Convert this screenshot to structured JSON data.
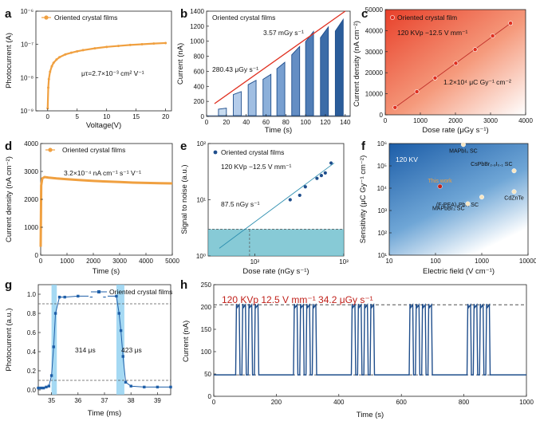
{
  "colors": {
    "orange": "#F0A040",
    "blue": "#1F4E8C",
    "red": "#E03020",
    "teal": "#5FB8C8",
    "lightblue": "#8ED0F0",
    "darkred": "#C0201A"
  },
  "chart_data": [
    {
      "panel": "a",
      "type": "line",
      "legend": "Oriented crystal films",
      "annotation": "μτ=2.7×10⁻³ cm² V⁻¹",
      "xlabel": "Voltage(V)",
      "ylabel": "Photocurrent (A)",
      "xlim": [
        -2,
        21
      ],
      "ylim_log": [
        1e-09,
        1e-06
      ],
      "yscale": "log",
      "xticks": [
        "0",
        "5",
        "10",
        "15",
        "20"
      ],
      "yticks": [
        "10⁻⁹",
        "10⁻⁸",
        "10⁻⁷",
        "10⁻⁶"
      ],
      "x": [
        0.0,
        0.1,
        0.2,
        0.4,
        0.7,
        1.0,
        1.5,
        2,
        3,
        4,
        5,
        6,
        8,
        10,
        12,
        14,
        16,
        18,
        20
      ],
      "y": [
        1.2e-09,
        5e-09,
        9e-09,
        1.5e-08,
        2.2e-08,
        2.8e-08,
        3.5e-08,
        4.1e-08,
        5e-08,
        5.6e-08,
        6.2e-08,
        6.7e-08,
        7.6e-08,
        8.4e-08,
        9e-08,
        9.6e-08,
        1.01e-07,
        1.06e-07,
        1.1e-07
      ]
    },
    {
      "panel": "b",
      "type": "line",
      "legend": "Oriented crystal films",
      "annotations": [
        "3.57 mGy s⁻¹",
        "280.43 μGy s⁻¹"
      ],
      "xlabel": "Time (s)",
      "ylabel": "Current (nA)",
      "xlim": [
        0,
        145
      ],
      "ylim": [
        0,
        1400
      ],
      "xticks": [
        "0",
        "20",
        "40",
        "60",
        "80",
        "100",
        "120",
        "140"
      ],
      "yticks": [
        "0",
        "200",
        "400",
        "600",
        "800",
        "1000",
        "1200",
        "1400"
      ],
      "pulses": [
        {
          "on": 12,
          "off": 20,
          "peak": 110
        },
        {
          "on": 27,
          "off": 35,
          "peak": 330
        },
        {
          "on": 42,
          "off": 50,
          "peak": 480
        },
        {
          "on": 57,
          "off": 65,
          "peak": 560
        },
        {
          "on": 71,
          "off": 79,
          "peak": 720
        },
        {
          "on": 86,
          "off": 94,
          "peak": 930
        },
        {
          "on": 100,
          "off": 108,
          "peak": 1130
        },
        {
          "on": 115,
          "off": 123,
          "peak": 1190
        },
        {
          "on": 130,
          "off": 138,
          "peak": 1290
        }
      ],
      "trend": {
        "x": [
          8,
          140
        ],
        "y": [
          170,
          1400
        ]
      }
    },
    {
      "panel": "c",
      "type": "scatter",
      "legend": "Oriented crystal film",
      "annotations": [
        "120 KVp  −12.5 V mm⁻¹",
        "1.2×10⁴  μC Gy⁻¹ cm⁻²"
      ],
      "xlabel": "Dose rate (μGy s⁻¹)",
      "ylabel": "Current density (nA cm⁻²)",
      "xlim": [
        0,
        4000
      ],
      "ylim": [
        0,
        50000
      ],
      "xticks": [
        "0",
        "1000",
        "2000",
        "3000",
        "4000"
      ],
      "yticks": [
        "0",
        "10000",
        "20000",
        "30000",
        "40000",
        "50000"
      ],
      "x": [
        280,
        900,
        1420,
        2010,
        2560,
        3060,
        3570
      ],
      "y": [
        3500,
        11000,
        17500,
        24500,
        31000,
        37500,
        43500
      ]
    },
    {
      "panel": "d",
      "type": "line",
      "legend": "Oriented crystal films",
      "annotation": "3.2×10⁻⁴ nA cm⁻¹ s⁻¹ V⁻¹",
      "xlabel": "Time (s)",
      "ylabel": "Current density (nA cm⁻²)",
      "xlim": [
        0,
        5000
      ],
      "ylim": [
        0,
        4000
      ],
      "xticks": [
        "0",
        "1000",
        "2000",
        "3000",
        "4000",
        "5000"
      ],
      "yticks": [
        "0",
        "1000",
        "2000",
        "3000",
        "4000"
      ],
      "x": [
        0,
        20,
        60,
        150,
        300,
        600,
        1000,
        1500,
        2000,
        2500,
        3000,
        3500,
        4000,
        4500,
        5000
      ],
      "y": [
        300,
        2500,
        2750,
        2800,
        2780,
        2750,
        2720,
        2690,
        2660,
        2640,
        2620,
        2600,
        2590,
        2580,
        2570
      ]
    },
    {
      "panel": "e",
      "type": "scatter",
      "legend": "Oriented crystal films",
      "annotations": [
        "120 KVp  −12.5 V mm⁻¹",
        "87.5 nGy s⁻¹"
      ],
      "xlabel": "Dose rate (nGy s⁻¹)",
      "ylabel": "Signal to noise (a.u.)",
      "xscale": "log",
      "yscale": "log",
      "xlim": [
        30,
        1000
      ],
      "ylim": [
        1,
        100
      ],
      "xticks": [
        "10²",
        "10³"
      ],
      "yticks": [
        "10⁰",
        "10¹",
        "10²"
      ],
      "x": [
        250,
        320,
        370,
        500,
        560,
        620,
        720
      ],
      "y": [
        10,
        12,
        17,
        24,
        27,
        30,
        45
      ],
      "threshold_snr": 3,
      "lod": 87.5
    },
    {
      "panel": "f",
      "type": "scatter",
      "annotation": "120 KV",
      "xlabel": "Electric field (V cm⁻¹)",
      "ylabel": "Sensitivity (μC Gy⁻¹ cm⁻²)",
      "xscale": "log",
      "yscale": "log",
      "xlim": [
        10,
        10000
      ],
      "ylim": [
        10,
        1000000
      ],
      "xticks": [
        "10",
        "100",
        "1000",
        "10000"
      ],
      "yticks": [
        "10¹",
        "10²",
        "10³",
        "10⁴",
        "10⁵",
        "10⁶"
      ],
      "points": [
        {
          "label": "MAPbI₃ SC",
          "x": 400,
          "y": 900000
        },
        {
          "label": "CsPbBr₂.₉I₀.₁ SC",
          "x": 5000,
          "y": 60000
        },
        {
          "label": "This work",
          "x": 125,
          "y": 12000
        },
        {
          "label": "(F-PEA)₂PbI₄ SC",
          "x": 1000,
          "y": 4000
        },
        {
          "label": "CdZnTe",
          "x": 5000,
          "y": 7000
        },
        {
          "label": "MAPbBr₃ SC",
          "x": 500,
          "y": 2000
        }
      ]
    },
    {
      "panel": "g",
      "type": "line",
      "legend": "Oriented crystal films",
      "annotations": [
        "314  μs",
        "423  μs"
      ],
      "xlabel": "Time (ms)",
      "ylabel": "Photocurrent (a.u.)",
      "xlim": [
        34.5,
        39.5
      ],
      "ylim": [
        -0.05,
        1.1
      ],
      "xticks": [
        "35",
        "36",
        "37",
        "38",
        "39"
      ],
      "yticks": [
        "0.0",
        "0.2",
        "0.4",
        "0.6",
        "0.8",
        "1.0"
      ],
      "x": [
        34.5,
        34.6,
        34.7,
        34.8,
        34.9,
        35.0,
        35.08,
        35.15,
        35.3,
        35.5,
        36.0,
        36.5,
        37.0,
        37.45,
        37.55,
        37.62,
        37.7,
        37.8,
        38.0,
        38.5,
        39.0,
        39.5
      ],
      "y": [
        0.02,
        0.02,
        0.02,
        0.03,
        0.04,
        0.15,
        0.45,
        0.8,
        0.97,
        0.97,
        0.98,
        0.98,
        0.98,
        0.98,
        0.8,
        0.62,
        0.35,
        0.08,
        0.04,
        0.03,
        0.03,
        0.03
      ],
      "highlights": [
        [
          35.0,
          35.2
        ],
        [
          37.45,
          37.75
        ]
      ],
      "dashed": [
        0.9,
        0.1
      ]
    },
    {
      "panel": "h",
      "type": "line",
      "annotation": "120 KVp 12.5 V mm⁻¹ 34.2 μGy s⁻¹",
      "xlabel": "Time (s)",
      "ylabel": "Current (nA)",
      "xlim": [
        0,
        1000
      ],
      "ylim": [
        0,
        250
      ],
      "xticks": [
        "0",
        "200",
        "400",
        "600",
        "800",
        "1000"
      ],
      "yticks": [
        "0",
        "50",
        "100",
        "150",
        "200",
        "250"
      ],
      "baseline": 48,
      "high": 205,
      "pulse_groups": [
        [
          70,
          90,
          110,
          130
        ],
        [
          255,
          275,
          295,
          315
        ],
        [
          440,
          460,
          480,
          500
        ],
        [
          625,
          645,
          665,
          685
        ],
        [
          810,
          830,
          850,
          870
        ]
      ],
      "pulse_width": 14
    }
  ]
}
